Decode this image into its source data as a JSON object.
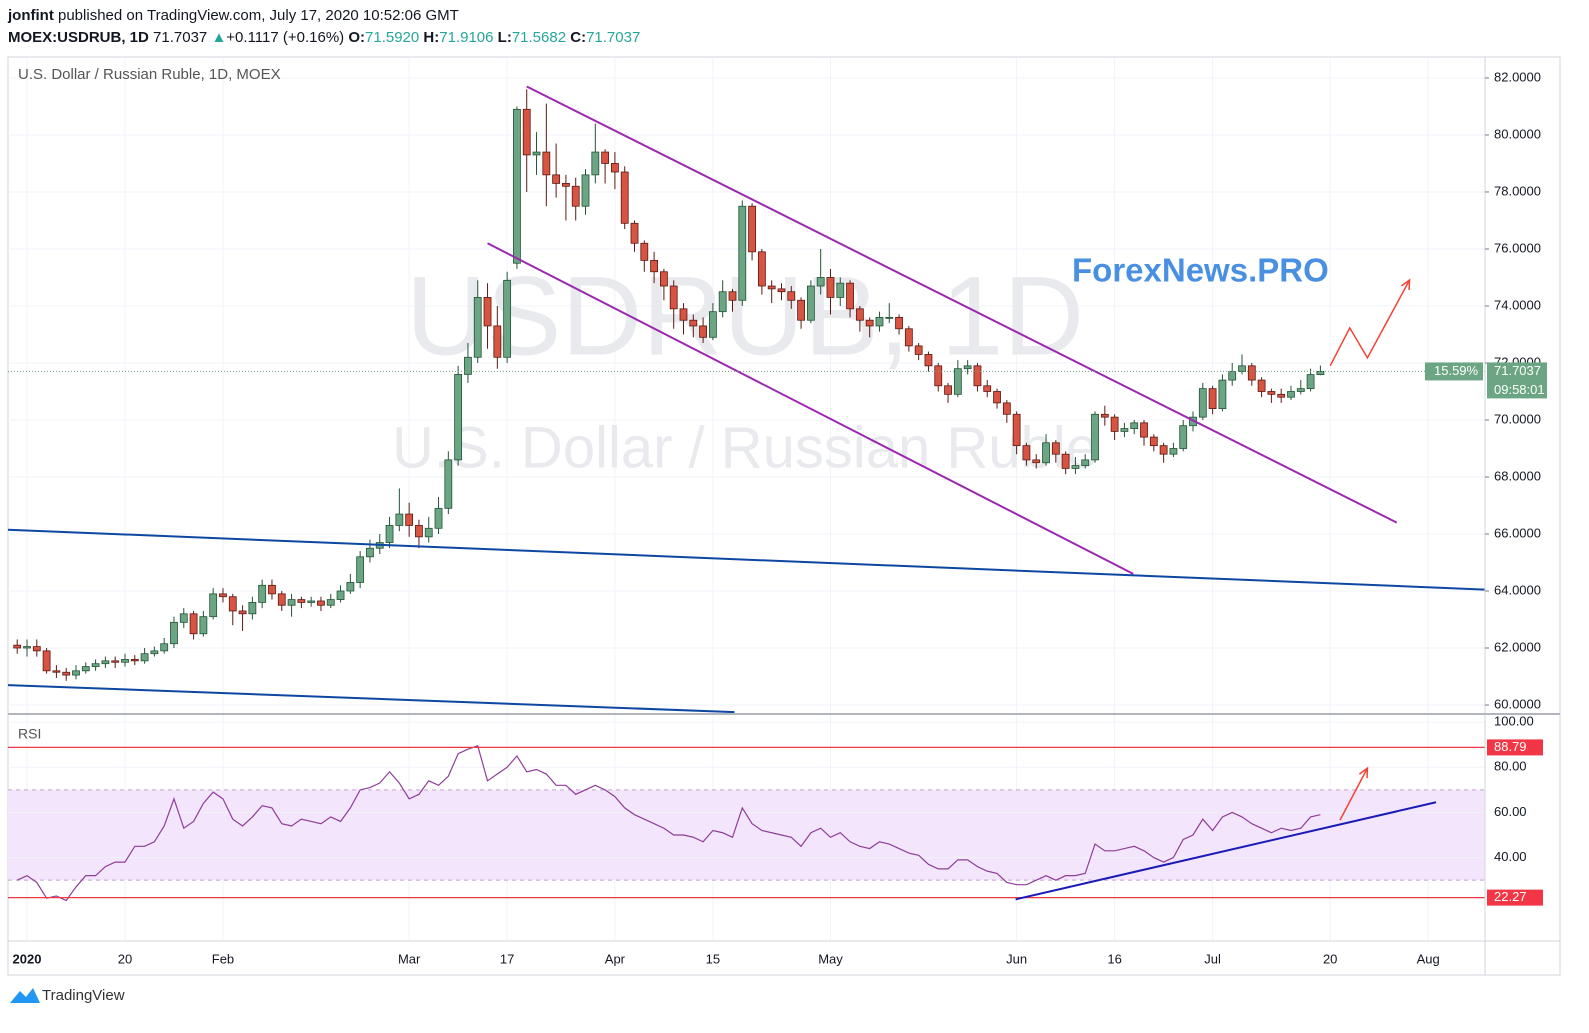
{
  "header": {
    "author": "jonfint",
    "published": "published on TradingView.com, July 17, 2020 10:52:06 GMT",
    "symbol": "MOEX:USDRUB, 1D",
    "last": "71.7037",
    "arrow": "▲",
    "change": "+0.1117 (+0.16%)",
    "open_label": "O:",
    "open": "71.5920",
    "high_label": "H:",
    "high": "71.9106",
    "low_label": "L:",
    "low": "71.5682",
    "close_label": "C:",
    "close": "71.7037",
    "brand": "TradingView"
  },
  "chart_data": {
    "type": "candlestick",
    "title": "U.S. Dollar / Russian Ruble, 1D, MOEX",
    "watermark": "USDRUB, 1D",
    "watermark_sub": "U.S. Dollar / Russian Ruble",
    "annotation": "ForexNews.PRO",
    "up_color": "#6ba583",
    "down_color": "#d75442",
    "xlim": [
      -1.94,
      148.8
    ],
    "xticks": [
      {
        "value": 0,
        "label": "2020"
      },
      {
        "value": 10,
        "label": "20"
      },
      {
        "value": 20,
        "label": "Feb"
      },
      {
        "value": 39,
        "label": "Mar"
      },
      {
        "value": 49,
        "label": "17"
      },
      {
        "value": 60,
        "label": "Apr"
      },
      {
        "value": 70,
        "label": "15"
      },
      {
        "value": 82,
        "label": "May"
      },
      {
        "value": 101,
        "label": "Jun"
      },
      {
        "value": 111,
        "label": "16"
      },
      {
        "value": 121,
        "label": "Jul"
      },
      {
        "value": 133,
        "label": "20"
      },
      {
        "value": 143,
        "label": "Aug"
      }
    ],
    "ylim": [
      59.72,
      82.7
    ],
    "yticks": [
      {
        "value": 60,
        "label": "60.0000"
      },
      {
        "value": 62,
        "label": "62.0000"
      },
      {
        "value": 64,
        "label": "64.0000"
      },
      {
        "value": 66,
        "label": "66.0000"
      },
      {
        "value": 68,
        "label": "68.0000"
      },
      {
        "value": 70,
        "label": "70.0000"
      },
      {
        "value": 72,
        "label": "72.0000"
      },
      {
        "value": 74,
        "label": "74.0000"
      },
      {
        "value": 76,
        "label": "76.0000"
      },
      {
        "value": 78,
        "label": "78.0000"
      },
      {
        "value": 80,
        "label": "80.0000"
      },
      {
        "value": 82,
        "label": "82.0000"
      }
    ],
    "grid": true,
    "candles": {
      "x": [
        -1,
        0,
        1,
        2,
        3,
        4,
        5,
        6,
        7,
        8,
        9,
        10,
        11,
        12,
        13,
        14,
        15,
        16,
        17,
        18,
        19,
        20,
        21,
        22,
        23,
        24,
        25,
        26,
        27,
        28,
        29,
        30,
        31,
        32,
        33,
        34,
        35,
        36,
        37,
        38,
        39,
        40,
        41,
        42,
        43,
        44,
        45,
        46,
        47,
        48,
        49,
        50,
        51,
        52,
        53,
        54,
        55,
        56,
        57,
        58,
        59,
        60,
        61,
        62,
        63,
        64,
        65,
        66,
        67,
        68,
        69,
        70,
        71,
        72,
        73,
        74,
        75,
        76,
        77,
        78,
        79,
        80,
        81,
        82,
        83,
        84,
        85,
        86,
        87,
        88,
        89,
        90,
        91,
        92,
        93,
        94,
        95,
        96,
        97,
        98,
        99,
        100,
        101,
        102,
        103,
        104,
        105,
        106,
        107,
        108,
        109,
        110,
        111,
        112,
        113,
        114,
        115,
        116,
        117,
        118,
        119,
        120,
        121,
        122,
        123,
        124,
        125,
        126,
        127,
        128,
        129,
        130,
        131,
        132
      ],
      "open": [
        62.1,
        62.0,
        62.05,
        61.9,
        61.2,
        61.15,
        61.05,
        61.2,
        61.35,
        61.45,
        61.55,
        61.5,
        61.6,
        61.55,
        61.8,
        61.9,
        62.15,
        62.9,
        63.2,
        62.5,
        63.1,
        63.9,
        63.8,
        63.3,
        63.2,
        63.6,
        64.2,
        63.9,
        63.5,
        63.7,
        63.6,
        63.65,
        63.5,
        63.7,
        64.0,
        64.3,
        65.2,
        65.5,
        65.7,
        66.3,
        66.7,
        66.3,
        65.9,
        66.2,
        66.9,
        68.6,
        71.6,
        72.2,
        74.3,
        73.3,
        72.2,
        75.5,
        80.9,
        79.3,
        79.4,
        78.6,
        78.3,
        78.2,
        77.5,
        78.6,
        79.4,
        79.0,
        78.7,
        76.9,
        76.2,
        75.6,
        75.2,
        74.7,
        73.9,
        73.5,
        73.3,
        72.9,
        73.8,
        74.5,
        74.2,
        77.5,
        75.9,
        74.7,
        74.6,
        74.5,
        74.2,
        73.5,
        74.7,
        75.0,
        74.3,
        74.8,
        73.9,
        73.5,
        73.3,
        73.6,
        73.6,
        73.2,
        72.6,
        72.3,
        71.9,
        71.2,
        70.9,
        71.8,
        71.9,
        71.2,
        71.0,
        70.6,
        70.2,
        69.1,
        68.6,
        68.5,
        69.2,
        68.8,
        68.3,
        68.4,
        68.6,
        70.2,
        70.1,
        69.6,
        69.7,
        69.9,
        69.4,
        69.1,
        68.8,
        69.0,
        69.8,
        70.1,
        71.1,
        70.4,
        71.4,
        71.7,
        71.9,
        71.4,
        71.0,
        70.9,
        70.8,
        71.0,
        71.1,
        71.592
      ],
      "high": [
        62.3,
        62.3,
        62.3,
        62.0,
        61.4,
        61.3,
        61.4,
        61.5,
        61.6,
        61.7,
        61.7,
        61.8,
        61.75,
        62.0,
        62.05,
        62.35,
        63.1,
        63.4,
        63.3,
        63.3,
        64.1,
        64.1,
        63.9,
        63.5,
        63.8,
        64.4,
        64.4,
        64.0,
        63.9,
        63.8,
        63.8,
        63.8,
        63.9,
        64.2,
        64.6,
        65.4,
        65.8,
        66.0,
        66.6,
        67.6,
        67.1,
        66.5,
        66.6,
        67.3,
        68.9,
        71.9,
        72.7,
        74.9,
        74.8,
        74.0,
        75.2,
        81.0,
        81.6,
        80.1,
        81.1,
        79.7,
        78.6,
        78.5,
        78.8,
        80.4,
        79.5,
        79.4,
        78.9,
        77.0,
        76.3,
        75.9,
        75.3,
        74.9,
        74.1,
        73.7,
        73.6,
        74.1,
        74.9,
        74.6,
        77.7,
        77.6,
        76.0,
        74.9,
        74.8,
        74.7,
        74.3,
        74.9,
        76.0,
        75.3,
        75.0,
        74.9,
        74.0,
        73.6,
        73.8,
        74.1,
        73.7,
        73.3,
        72.7,
        72.4,
        72.0,
        71.3,
        72.1,
        72.1,
        72.0,
        71.4,
        71.1,
        70.7,
        70.3,
        69.2,
        68.8,
        69.5,
        69.3,
        68.9,
        68.7,
        68.8,
        70.3,
        70.5,
        70.2,
        69.9,
        70.0,
        70.0,
        69.5,
        69.2,
        69.2,
        70.0,
        70.3,
        71.3,
        71.2,
        71.6,
        72.0,
        72.3,
        72.0,
        71.5,
        71.1,
        71.1,
        71.2,
        71.4,
        71.8,
        71.9106
      ],
      "low": [
        61.8,
        61.7,
        61.7,
        61.1,
        60.95,
        60.85,
        60.9,
        61.1,
        61.2,
        61.3,
        61.3,
        61.35,
        61.4,
        61.45,
        61.7,
        61.8,
        62.0,
        62.7,
        62.3,
        62.4,
        63.0,
        63.6,
        62.8,
        62.6,
        63.0,
        63.4,
        63.7,
        63.3,
        63.1,
        63.4,
        63.45,
        63.3,
        63.4,
        63.6,
        63.9,
        64.1,
        65.0,
        65.3,
        65.5,
        66.1,
        65.9,
        65.5,
        65.7,
        66.0,
        66.7,
        68.4,
        71.3,
        72.0,
        72.5,
        71.8,
        72.0,
        75.3,
        78.0,
        78.6,
        77.5,
        77.8,
        77.0,
        77.0,
        77.2,
        78.3,
        78.3,
        78.1,
        76.7,
        75.9,
        75.2,
        74.8,
        74.2,
        73.2,
        73.0,
        72.9,
        72.7,
        72.8,
        73.6,
        73.8,
        74.0,
        75.6,
        74.4,
        74.1,
        74.2,
        73.9,
        73.2,
        73.4,
        74.4,
        73.7,
        74.0,
        73.6,
        73.1,
        72.9,
        73.1,
        73.4,
        73.0,
        72.4,
        72.1,
        71.7,
        71.0,
        70.6,
        70.8,
        71.6,
        71.0,
        70.8,
        70.4,
        69.9,
        68.8,
        68.4,
        68.3,
        68.4,
        68.5,
        68.1,
        68.1,
        68.3,
        68.5,
        69.8,
        69.3,
        69.4,
        69.5,
        69.1,
        68.9,
        68.5,
        68.7,
        68.9,
        69.6,
        70.0,
        70.2,
        70.3,
        71.2,
        71.6,
        71.2,
        70.8,
        70.6,
        70.6,
        70.7,
        70.9,
        71.0,
        71.5682
      ],
      "close": [
        62.0,
        62.05,
        61.9,
        61.2,
        61.15,
        61.05,
        61.2,
        61.35,
        61.45,
        61.55,
        61.5,
        61.6,
        61.55,
        61.8,
        61.9,
        62.15,
        62.9,
        63.2,
        62.5,
        63.1,
        63.9,
        63.8,
        63.3,
        63.2,
        63.6,
        64.2,
        63.9,
        63.5,
        63.7,
        63.6,
        63.65,
        63.5,
        63.7,
        64.0,
        64.3,
        65.2,
        65.5,
        65.7,
        66.3,
        66.7,
        66.3,
        65.9,
        66.2,
        66.9,
        68.6,
        71.6,
        72.2,
        74.3,
        73.3,
        72.2,
        74.9,
        80.9,
        79.3,
        79.4,
        78.6,
        78.3,
        78.2,
        77.5,
        78.6,
        79.4,
        79.0,
        78.7,
        76.9,
        76.2,
        75.6,
        75.2,
        74.7,
        73.9,
        73.5,
        73.3,
        72.9,
        73.8,
        74.5,
        74.2,
        77.5,
        75.9,
        74.7,
        74.6,
        74.5,
        74.2,
        73.5,
        74.7,
        75.0,
        74.3,
        74.8,
        73.9,
        73.5,
        73.3,
        73.6,
        73.6,
        73.2,
        72.6,
        72.3,
        71.9,
        71.2,
        70.9,
        71.8,
        71.9,
        71.2,
        71.0,
        70.6,
        70.2,
        69.1,
        68.6,
        68.5,
        69.2,
        68.8,
        68.3,
        68.4,
        68.6,
        70.2,
        70.1,
        69.6,
        69.7,
        69.9,
        69.4,
        69.1,
        68.8,
        69.0,
        69.8,
        70.1,
        71.1,
        70.4,
        71.4,
        71.7,
        71.9,
        71.4,
        71.0,
        70.9,
        70.8,
        71.0,
        71.1,
        71.592,
        71.7037
      ]
    },
    "last_price": {
      "value": 71.7037,
      "label": "71.7037",
      "change_label": "15.59%",
      "countdown": "09:58:01",
      "color": "#6ba583"
    },
    "trend_lines": [
      {
        "color": "#9c27b0",
        "points": [
          [
            51.0,
            81.7
          ],
          [
            139.8,
            66.4
          ]
        ]
      },
      {
        "color": "#9c27b0",
        "points": [
          [
            47.0,
            76.2
          ],
          [
            112.9,
            64.6
          ]
        ]
      },
      {
        "color": "#0d47a1",
        "points": [
          [
            -1.94,
            66.15
          ],
          [
            148.8,
            64.05
          ]
        ]
      },
      {
        "color": "#0d47a1",
        "points": [
          [
            -1.94,
            60.7
          ],
          [
            72.2,
            59.75
          ]
        ]
      }
    ],
    "arrow": {
      "color": "#f44336",
      "points": [
        [
          133,
          71.9
        ],
        [
          135,
          73.23
        ],
        [
          136.8,
          72.18
        ],
        [
          141.1,
          74.91
        ]
      ]
    },
    "rsi": {
      "title": "RSI",
      "color": "#8e3e97",
      "ylim": [
        3.5,
        102.7
      ],
      "yticks": [
        {
          "value": 40,
          "label": "40.00"
        },
        {
          "value": 60,
          "label": "60.00"
        },
        {
          "value": 80,
          "label": "80.00"
        },
        {
          "value": 100,
          "label": "100.00"
        }
      ],
      "band": [
        30,
        70
      ],
      "band_color": "#f3e5fc",
      "levels": [
        {
          "value": 88.79,
          "label": "88.79",
          "color": "#f23645"
        },
        {
          "value": 22.27,
          "label": "22.27",
          "color": "#f23645"
        }
      ],
      "values": [
        30,
        32,
        29,
        22,
        23,
        21,
        27,
        32,
        32,
        36,
        38,
        38,
        45,
        45,
        47,
        54,
        66,
        53,
        56,
        64,
        69,
        66,
        57,
        54,
        58,
        63,
        62,
        55,
        54,
        57,
        56,
        55,
        58,
        56,
        62,
        70,
        71,
        73,
        78,
        73,
        66,
        68,
        74,
        72,
        76,
        86,
        88,
        89.5,
        74,
        77,
        80,
        85,
        78,
        79,
        77,
        72,
        72,
        68,
        70,
        72,
        70,
        67,
        62,
        59,
        57,
        55,
        53,
        50,
        50,
        49,
        47,
        52,
        51,
        49,
        62,
        55,
        52,
        51,
        50,
        49,
        45,
        51,
        53,
        49,
        51,
        47,
        45,
        44,
        47,
        46,
        44,
        42,
        41,
        37,
        35,
        35,
        39,
        39,
        36,
        34,
        33,
        29,
        28,
        28,
        30,
        32,
        30,
        32,
        32,
        33,
        46,
        43,
        43,
        44,
        45,
        43,
        40,
        38,
        40,
        48,
        50,
        57,
        52,
        58,
        60,
        58,
        55,
        53,
        51,
        53,
        52,
        53,
        58,
        59
      ],
      "trend_line": {
        "color": "#1a1ab8",
        "points": [
          [
            100.9,
            21.5
          ],
          [
            143.8,
            64.5
          ]
        ]
      },
      "arrow": {
        "color": "#f44336",
        "points": [
          [
            134,
            56.6
          ],
          [
            136.8,
            79.6
          ]
        ]
      }
    }
  }
}
